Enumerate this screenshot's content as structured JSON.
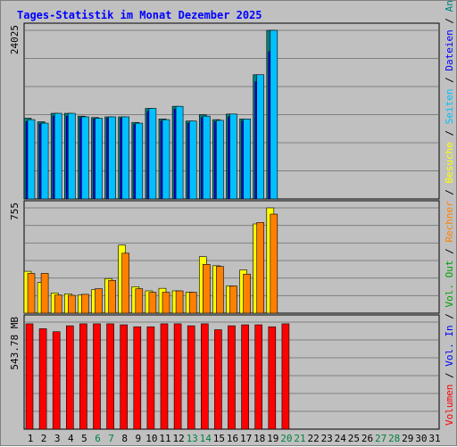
{
  "chart_data": {
    "type": "bar",
    "title": "Tages-Statistik im Monat Dezember 2025",
    "days": [
      "1",
      "2",
      "3",
      "4",
      "5",
      "6",
      "7",
      "8",
      "9",
      "10",
      "11",
      "12",
      "13",
      "14",
      "15",
      "16",
      "17",
      "18",
      "19",
      "20",
      "21",
      "22",
      "23",
      "24",
      "25",
      "26",
      "27",
      "28",
      "29",
      "30",
      "31"
    ],
    "weekend_days": [
      "6",
      "7",
      "13",
      "14",
      "20",
      "21",
      "27",
      "28"
    ],
    "panels": [
      {
        "id": "hits",
        "ymax_label": "24025",
        "ymax": 24025,
        "series": [
          {
            "name": "Anfragen",
            "color": "#008080",
            "values": [
              11500,
              11000,
              12200,
              12200,
              11800,
              11600,
              11700,
              11700,
              10900,
              12900,
              11400,
              13200,
              11100,
              12000,
              11300,
              12100,
              11400,
              17700,
              24025,
              null,
              null,
              null,
              null,
              null,
              null,
              null,
              null,
              null,
              null,
              null,
              null
            ]
          },
          {
            "name": "Dateien",
            "color": "#0000ff",
            "values": [
              11000,
              10700,
              11800,
              11800,
              11600,
              11400,
              11500,
              11500,
              10600,
              12500,
              11100,
              12800,
              10800,
              11600,
              11000,
              11700,
              11100,
              16700,
              21000,
              null,
              null,
              null,
              null,
              null,
              null,
              null,
              null,
              null,
              null,
              null,
              null
            ]
          },
          {
            "name": "Seiten",
            "color": "#00c0ff",
            "values": [
              11300,
              10800,
              12200,
              12200,
              11700,
              11500,
              11700,
              11700,
              10800,
              12900,
              11300,
              13200,
              11100,
              11800,
              11200,
              12100,
              11400,
              17700,
              24025,
              null,
              null,
              null,
              null,
              null,
              null,
              null,
              null,
              null,
              null,
              null,
              null
            ]
          }
        ]
      },
      {
        "id": "visits",
        "ymax_label": "755",
        "ymax": 755,
        "series": [
          {
            "name": "Besuche",
            "color": "#ffff00",
            "values": [
              300,
              220,
              145,
              138,
              130,
              168,
              248,
              488,
              190,
              160,
              178,
              160,
              150,
              405,
              340,
              195,
              310,
              640,
              755,
              null,
              null,
              null,
              null,
              null,
              null,
              null,
              null,
              null,
              null,
              null,
              null
            ]
          },
          {
            "name": "Rechner",
            "color": "#ff8000",
            "values": [
              285,
              285,
              130,
              128,
              135,
              175,
              235,
              430,
              175,
              150,
              150,
              160,
              150,
              350,
              335,
              195,
              280,
              650,
              710,
              null,
              null,
              null,
              null,
              null,
              null,
              null,
              null,
              null,
              null,
              null,
              null
            ]
          }
        ]
      },
      {
        "id": "volume",
        "ymax_label": "543.78 MB",
        "ymax": 543.78,
        "series": [
          {
            "name": "Volumen",
            "color": "#ff0000",
            "values": [
              535,
              510,
              495,
              525,
              535,
              535,
              535,
              530,
              520,
              520,
              535,
              535,
              525,
              535,
              505,
              525,
              530,
              530,
              520,
              535,
              null,
              null,
              null,
              null,
              null,
              null,
              null,
              null,
              null,
              null,
              null
            ]
          }
        ]
      }
    ],
    "right_legend": [
      {
        "text": "Anfragen",
        "color": "#008080"
      },
      {
        "text": "Dateien",
        "color": "#0000ff"
      },
      {
        "text": "Seiten",
        "color": "#00c0ff"
      },
      {
        "text": "Besuche",
        "color": "#ffff00"
      },
      {
        "text": "Rechner",
        "color": "#ff8000"
      },
      {
        "text": "Vol. Out",
        "color": "#00a000"
      },
      {
        "text": "Vol. In",
        "color": "#0000ff"
      },
      {
        "text": "Volumen",
        "color": "#ff0000"
      }
    ],
    "grid": true,
    "legend_position": "right"
  }
}
